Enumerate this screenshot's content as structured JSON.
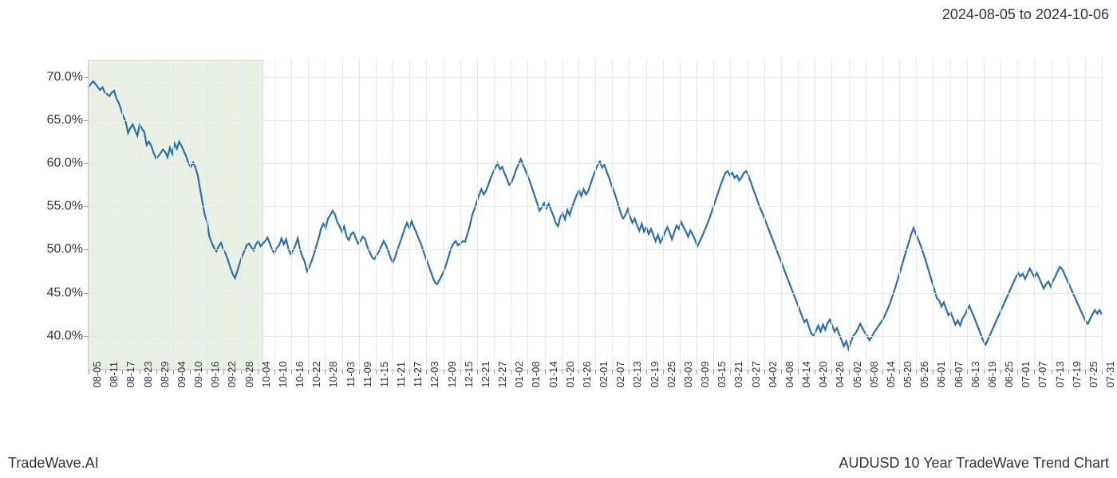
{
  "header": {
    "date_range": "2024-08-05 to 2024-10-06"
  },
  "footer": {
    "left": "TradeWave.AI",
    "right": "AUDUSD 10 Year TradeWave Trend Chart"
  },
  "chart": {
    "type": "line",
    "background_color": "#ffffff",
    "grid_color": "#e8e8e8",
    "axis_color": "#cccccc",
    "line_color": "#2e6fa5",
    "line_width": 2.2,
    "highlight_color": "#dce8d4",
    "highlight_border": "#b8d0a8",
    "font_color": "#333333",
    "ylim": [
      36,
      72
    ],
    "ytick_step": 5,
    "yticks": [
      {
        "value": 40,
        "label": "40.0%"
      },
      {
        "value": 45,
        "label": "45.0%"
      },
      {
        "value": 50,
        "label": "50.0%"
      },
      {
        "value": 55,
        "label": "55.0%"
      },
      {
        "value": 60,
        "label": "60.0%"
      },
      {
        "value": 65,
        "label": "65.0%"
      },
      {
        "value": 70,
        "label": "70.0%"
      }
    ],
    "highlight": {
      "start_label": "08-05",
      "end_label": "10-06"
    },
    "xticks": [
      "08-05",
      "08-11",
      "08-17",
      "08-23",
      "08-29",
      "09-04",
      "09-10",
      "09-16",
      "09-22",
      "09-28",
      "10-04",
      "10-10",
      "10-16",
      "10-22",
      "10-28",
      "11-03",
      "11-09",
      "11-15",
      "11-21",
      "11-27",
      "12-03",
      "12-09",
      "12-15",
      "12-21",
      "12-27",
      "01-02",
      "01-08",
      "01-14",
      "01-20",
      "01-26",
      "02-01",
      "02-07",
      "02-13",
      "02-19",
      "02-25",
      "03-03",
      "03-09",
      "03-15",
      "03-21",
      "03-27",
      "04-02",
      "04-08",
      "04-14",
      "04-20",
      "04-26",
      "05-02",
      "05-08",
      "05-14",
      "05-20",
      "05-26",
      "06-01",
      "06-07",
      "06-13",
      "06-19",
      "06-25",
      "07-01",
      "07-07",
      "07-13",
      "07-19",
      "07-25",
      "07-31"
    ],
    "values": [
      68.8,
      69.2,
      69.5,
      69.2,
      68.8,
      68.5,
      68.8,
      68.2,
      68.0,
      67.8,
      68.2,
      68.4,
      67.5,
      67.0,
      66.2,
      65.4,
      64.8,
      63.5,
      64.1,
      64.5,
      63.8,
      63.2,
      64.5,
      64.0,
      63.6,
      62.1,
      62.5,
      62.0,
      61.2,
      60.6,
      60.8,
      61.2,
      61.6,
      61.3,
      60.7,
      61.8,
      61.1,
      62.3,
      61.7,
      62.5,
      62.0,
      61.4,
      60.8,
      60.0,
      59.6,
      60.1,
      59.5,
      58.6,
      57.0,
      55.5,
      54.0,
      53.2,
      51.5,
      50.8,
      50.2,
      49.8,
      50.4,
      50.8,
      50.0,
      49.5,
      48.8,
      47.9,
      47.2,
      46.7,
      47.5,
      48.4,
      49.2,
      49.8,
      50.5,
      50.7,
      50.3,
      49.9,
      50.6,
      51.0,
      50.4,
      50.7,
      51.0,
      51.4,
      50.7,
      50.0,
      49.6,
      50.2,
      50.5,
      51.3,
      50.6,
      51.2,
      50.1,
      49.5,
      49.9,
      50.5,
      51.3,
      50.0,
      49.2,
      48.6,
      47.5,
      48.0,
      48.7,
      49.5,
      50.4,
      51.3,
      52.4,
      53.0,
      52.5,
      53.6,
      54.0,
      54.5,
      54.1,
      53.2,
      52.7,
      52.1,
      52.7,
      51.5,
      51.1,
      51.8,
      52.0,
      51.3,
      50.7,
      51.0,
      51.5,
      51.2,
      50.3,
      49.7,
      49.1,
      48.9,
      49.4,
      49.8,
      50.4,
      51.0,
      50.5,
      49.8,
      49.0,
      48.5,
      49.2,
      50.1,
      50.8,
      51.6,
      52.4,
      53.1,
      52.5,
      53.3,
      52.6,
      52.0,
      51.3,
      50.7,
      49.9,
      49.1,
      48.4,
      47.6,
      46.9,
      46.2,
      46.0,
      46.5,
      47.0,
      47.6,
      48.4,
      49.3,
      50.2,
      50.7,
      51.0,
      50.5,
      50.7,
      51.0,
      50.9,
      51.8,
      52.7,
      53.9,
      54.7,
      55.5,
      56.3,
      57.0,
      56.4,
      56.8,
      57.5,
      58.3,
      58.9,
      59.5,
      60.0,
      59.3,
      59.6,
      58.8,
      58.2,
      57.5,
      57.8,
      58.5,
      59.3,
      59.9,
      60.5,
      59.8,
      59.2,
      58.5,
      57.8,
      57.0,
      56.2,
      55.4,
      54.5,
      54.9,
      55.4,
      54.8,
      55.3,
      54.6,
      53.9,
      53.1,
      52.7,
      53.8,
      54.2,
      53.5,
      54.6,
      54.0,
      54.9,
      55.6,
      56.3,
      56.9,
      56.2,
      57.0,
      56.4,
      56.8,
      57.6,
      58.4,
      59.1,
      59.8,
      60.2,
      59.5,
      59.8,
      59.0,
      58.3,
      57.5,
      56.8,
      56.0,
      55.1,
      54.2,
      53.6,
      54.0,
      54.7,
      53.8,
      53.1,
      53.6,
      52.8,
      52.2,
      53.0,
      52.1,
      52.6,
      51.8,
      52.4,
      51.7,
      51.0,
      51.7,
      50.8,
      51.3,
      52.0,
      52.6,
      52.0,
      51.2,
      52.0,
      52.8,
      52.4,
      53.2,
      52.6,
      52.1,
      51.5,
      52.2,
      51.7,
      51.1,
      50.4,
      51.0,
      51.5,
      52.2,
      52.8,
      53.5,
      54.3,
      55.1,
      55.9,
      56.7,
      57.5,
      58.2,
      58.9,
      59.1,
      58.6,
      58.9,
      58.3,
      58.6,
      58.0,
      58.4,
      58.9,
      59.1,
      58.5,
      57.8,
      57.0,
      56.3,
      55.5,
      54.8,
      54.2,
      53.5,
      52.8,
      52.1,
      51.4,
      50.7,
      50.0,
      49.3,
      48.6,
      47.9,
      47.2,
      46.5,
      45.8,
      45.1,
      44.4,
      43.7,
      43.0,
      42.3,
      41.6,
      41.9,
      41.0,
      40.3,
      40.0,
      40.6,
      41.2,
      40.5,
      41.3,
      40.7,
      41.5,
      41.9,
      41.2,
      40.5,
      40.9,
      40.2,
      39.5,
      38.8,
      39.4,
      38.5,
      39.3,
      40.0,
      40.3,
      40.8,
      41.4,
      40.9,
      40.4,
      40.0,
      39.5,
      39.9,
      40.4,
      40.8,
      41.2,
      41.6,
      42.0,
      42.6,
      43.2,
      43.9,
      44.7,
      45.5,
      46.4,
      47.3,
      48.2,
      49.1,
      50.0,
      50.9,
      51.8,
      52.5,
      51.8,
      51.2,
      50.5,
      49.7,
      48.9,
      48.0,
      47.1,
      46.2,
      45.3,
      44.4,
      44.1,
      43.4,
      43.9,
      43.1,
      42.4,
      42.7,
      42.0,
      41.3,
      41.8,
      41.2,
      42.0,
      42.4,
      43.0,
      43.5,
      42.8,
      42.2,
      41.5,
      40.8,
      40.1,
      39.4,
      39.0,
      39.6,
      40.2,
      40.8,
      41.4,
      42.0,
      42.6,
      43.2,
      43.8,
      44.4,
      45.0,
      45.6,
      46.2,
      46.8,
      47.3,
      46.9,
      47.2,
      46.6,
      47.2,
      47.8,
      47.3,
      46.8,
      47.3,
      46.7,
      46.1,
      45.5,
      46.0,
      46.3,
      45.7,
      46.4,
      46.9,
      47.5,
      48.0,
      47.7,
      47.1,
      46.5,
      45.9,
      45.3,
      44.7,
      44.1,
      43.5,
      42.9,
      42.3,
      41.7,
      41.4,
      42.0,
      42.5,
      43.0,
      42.6,
      43.0,
      42.5
    ]
  }
}
